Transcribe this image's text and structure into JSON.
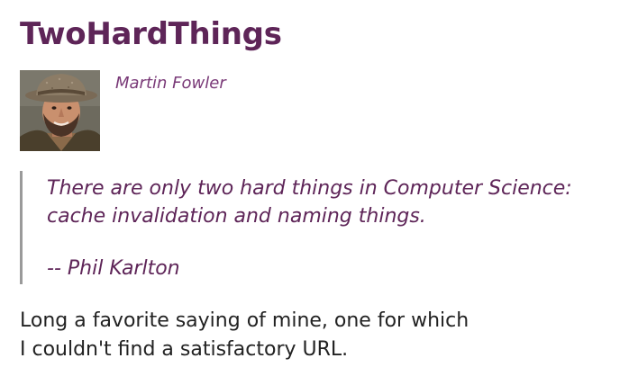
{
  "article": {
    "title": "TwoHardThings",
    "author": {
      "name": "Martin Fowler",
      "avatar_icon": "author-photo"
    },
    "quote": {
      "lines": [
        "There are only two hard things in Computer Science:",
        "cache invalidation and naming things."
      ],
      "attribution": "-- Phil Karlton"
    },
    "body": {
      "lines": [
        "Long a favorite saying of mine, one for which",
        "I couldn't find a satisfactory URL."
      ]
    }
  },
  "colors": {
    "title": "#5e2558",
    "author": "#7a3a78",
    "quote_text": "#5e2558",
    "quote_border": "#9a9a9a",
    "body_text": "#222222"
  }
}
